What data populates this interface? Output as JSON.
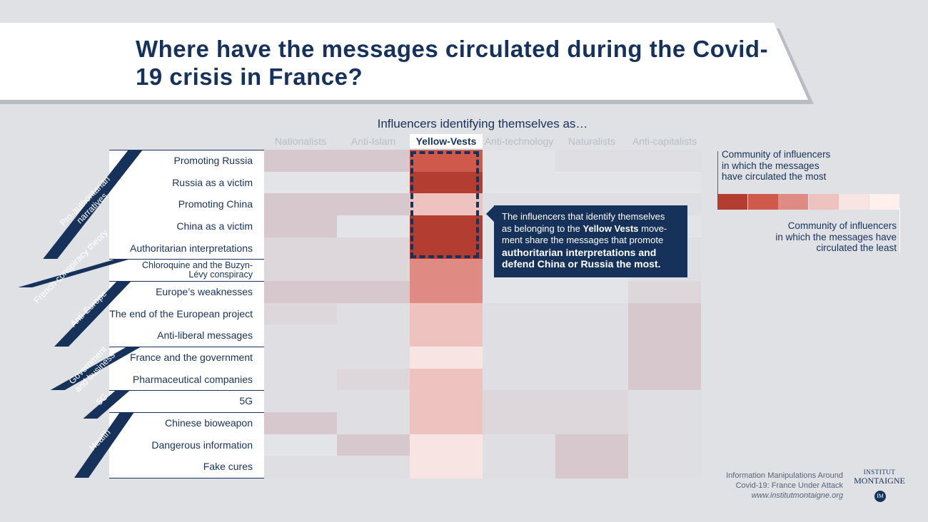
{
  "title": "Where have the messages circulated during the Covid-19 crisis in France?",
  "columns_title": "Influencers identifying themselves as…",
  "chart_data": {
    "type": "heatmap",
    "title": "Where have the messages circulated during the Covid-19 crisis in France?",
    "xlabel": "Influencers identifying themselves as…",
    "columns": [
      "Nationalists",
      "Anti-Islam",
      "Yellow-Vests",
      "Anti-technology",
      "Naturalists",
      "Anti-capitalists"
    ],
    "highlighted_column": "Yellow-Vests",
    "groups": [
      {
        "name": "Pro-authoritarian\nnarratives",
        "rows": [
          "Promoting Russia",
          "Russia as a victim",
          "Promoting China",
          "China as a victim",
          "Authoritarian interpretations"
        ]
      },
      {
        "name": "French conspiracy theory",
        "rows": [
          "Chloroquine and the Buzyn-Lévy conspiracy"
        ]
      },
      {
        "name": "Anti-Europe",
        "rows": [
          "Europe’s weaknesses",
          "The end of the European project",
          "Anti-liberal messages"
        ]
      },
      {
        "name": "Government\nand business",
        "rows": [
          "France and the government",
          "Pharmaceutical companies"
        ]
      },
      {
        "name": "5G",
        "rows": [
          "5G"
        ]
      },
      {
        "name": "Health",
        "rows": [
          "Chinese bioweapon",
          "Dangerous information",
          "Fake cures"
        ]
      }
    ],
    "rows": [
      "Promoting Russia",
      "Russia as a victim",
      "Promoting China",
      "China as a victim",
      "Authoritarian interpretations",
      "Chloroquine and the Buzyn-Lévy conspiracy",
      "Europe’s weaknesses",
      "The end of the European project",
      "Anti-liberal messages",
      "France and the government",
      "Pharmaceutical companies",
      "5G",
      "Chinese bioweapon",
      "Dangerous information",
      "Fake cures"
    ],
    "values": [
      [
        3,
        3,
        7,
        0,
        1,
        1
      ],
      [
        0,
        0,
        8,
        0,
        0,
        0
      ],
      [
        3,
        3,
        5,
        1,
        1,
        1
      ],
      [
        3,
        0,
        8,
        0,
        0,
        0
      ],
      [
        2,
        2,
        8,
        0,
        0,
        1
      ],
      [
        2,
        2,
        6,
        0,
        0,
        1
      ],
      [
        3,
        3,
        6,
        0,
        0,
        2
      ],
      [
        2,
        1,
        5,
        1,
        1,
        3
      ],
      [
        1,
        1,
        5,
        1,
        1,
        3
      ],
      [
        1,
        1,
        4,
        1,
        1,
        3
      ],
      [
        1,
        2,
        5,
        1,
        1,
        3
      ],
      [
        1,
        1,
        5,
        2,
        2,
        1
      ],
      [
        3,
        1,
        5,
        2,
        2,
        1
      ],
      [
        0,
        3,
        4,
        1,
        3,
        1
      ],
      [
        1,
        1,
        4,
        1,
        3,
        1
      ]
    ],
    "legend": {
      "high_label": "Community of influencers in which the messages have circulated the most",
      "low_label": "Community of influencers in which the messages have circulated the least",
      "scale": [
        8,
        7,
        6,
        5,
        4,
        3
      ]
    }
  },
  "colors": {
    "navy": "#17325a",
    "scale": {
      "0": "#e2e4e8",
      "1": "#dfdfe3",
      "2": "#ddd7db",
      "3": "#d6c8cc",
      "4": "#f8e4e2",
      "5": "#eec2bf",
      "6": "#df8a82",
      "7": "#cf5a4c",
      "8": "#b43d31"
    }
  },
  "callout": {
    "lines": [
      [
        {
          "t": "The influencers that identify themselves",
          "b": false
        }
      ],
      [
        {
          "t": "as belonging to the ",
          "b": false
        },
        {
          "t": "Yellow Vests",
          "b": true
        },
        {
          "t": " move-",
          "b": false
        }
      ],
      [
        {
          "t": "ment share the messages that promote",
          "b": false
        }
      ],
      [
        {
          "t": "authoritarian interpretations and",
          "b": true
        }
      ],
      [
        {
          "t": "defend China or Russia the most.",
          "b": true
        }
      ]
    ]
  },
  "legend_top_lines": [
    "Community of influencers",
    "in which the messages",
    "have circulated the most"
  ],
  "legend_bottom_lines": [
    "Community of influencers",
    "in which the messages have",
    "circulated the least"
  ],
  "source": {
    "line1": "Information Manipulations Around",
    "line2": "Covid-19: France Under Attack",
    "url": "www.institutmontaigne.org"
  },
  "logo": {
    "line1": "INSTITUT",
    "line2": "MONTAIGNE",
    "monogram": "IM"
  }
}
